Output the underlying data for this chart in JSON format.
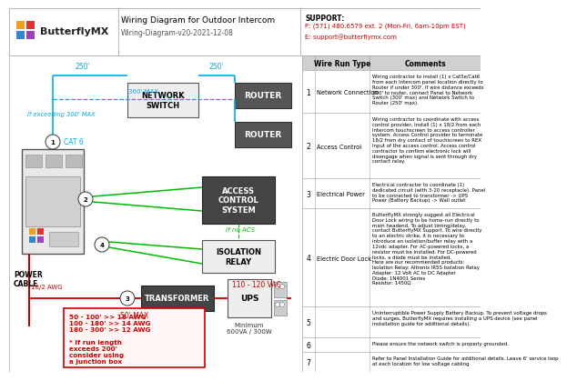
{
  "title": "Wiring Diagram for Outdoor Intercom",
  "subtitle": "Wiring-Diagram-v20-2021-12-08",
  "support_label": "SUPPORT:",
  "support_phone": "P: (571) 480.6579 ext. 2 (Mon-Fri, 6am-10pm EST)",
  "support_email": "E: support@butterflymx.com",
  "bg_color": "#ffffff",
  "table_rows": [
    {
      "num": "1",
      "type": "Network Connection",
      "comment": "Wiring contractor to install (1) x Cat5e/Cat6\nfrom each Intercom panel location directly to\nRouter if under 300'. If wire distance exceeds\n300' to router, connect Panel to Network\nSwitch (300' max) and Network Switch to\nRouter (250' max)."
    },
    {
      "num": "2",
      "type": "Access Control",
      "comment": "Wiring contractor to coordinate with access\ncontrol provider, install (1) x 18/2 from each\nIntercom touchscreen to access controller\nsystem. Access Control provider to terminate\n18/2 from dry contact of touchscreen to REX\nInput of the access control. Access control\ncontractor to confirm electronic lock will\ndisengage when signal is sent through dry\ncontact relay."
    },
    {
      "num": "3",
      "type": "Electrical Power",
      "comment": "Electrical contractor to coordinate (1)\ndedicated circuit (with 3-20 receptacle). Panel\nto be connected to transformer -> UPS\nPower (Battery Backup) -> Wall outlet"
    },
    {
      "num": "4",
      "type": "Electric Door Lock",
      "comment": "ButterflyMX strongly suggest all Electrical\nDoor Lock wiring to be home-run directly to\nmain headend. To adjust timing/delay,\ncontact ButterflyMX Support. To wire directly\nto an electric strike, it is necessary to\nintroduce an isolation/buffer relay with a\n12vdc adapter. For AC-powered locks, a\nresistor must be installed. For DC-powered\nlocks, a diode must be installed.\nHere are our recommended products:\nIsolation Relay: Altronix IR5S Isolation Relay\nAdapter: 12 Volt AC to DC Adapter\nDiode: 1N4001 Series\nResistor: 1450Ω"
    },
    {
      "num": "5",
      "type": "",
      "comment": "Uninterruptible Power Supply Battery Backup. To prevent voltage drops\nand surges, ButterflyMX requires installing a UPS device (see panel\ninstallation guide for additional details)."
    },
    {
      "num": "6",
      "type": "",
      "comment": "Please ensure the network switch is properly grounded."
    },
    {
      "num": "7",
      "type": "",
      "comment": "Refer to Panel Installation Guide for additional details. Leave 6' service loop\nat each location for low voltage cabling."
    }
  ],
  "blue": "#00aaee",
  "green": "#00bb00",
  "dark_red": "#cc0000",
  "logo_colors": [
    [
      "#f5a623",
      "#e74c3c"
    ],
    [
      "#9b59b6",
      "#e74c3c"
    ]
  ],
  "logo_colors2": [
    [
      "#f0a020",
      "#dd3333"
    ],
    [
      "#3388cc",
      "#9944bb"
    ]
  ]
}
